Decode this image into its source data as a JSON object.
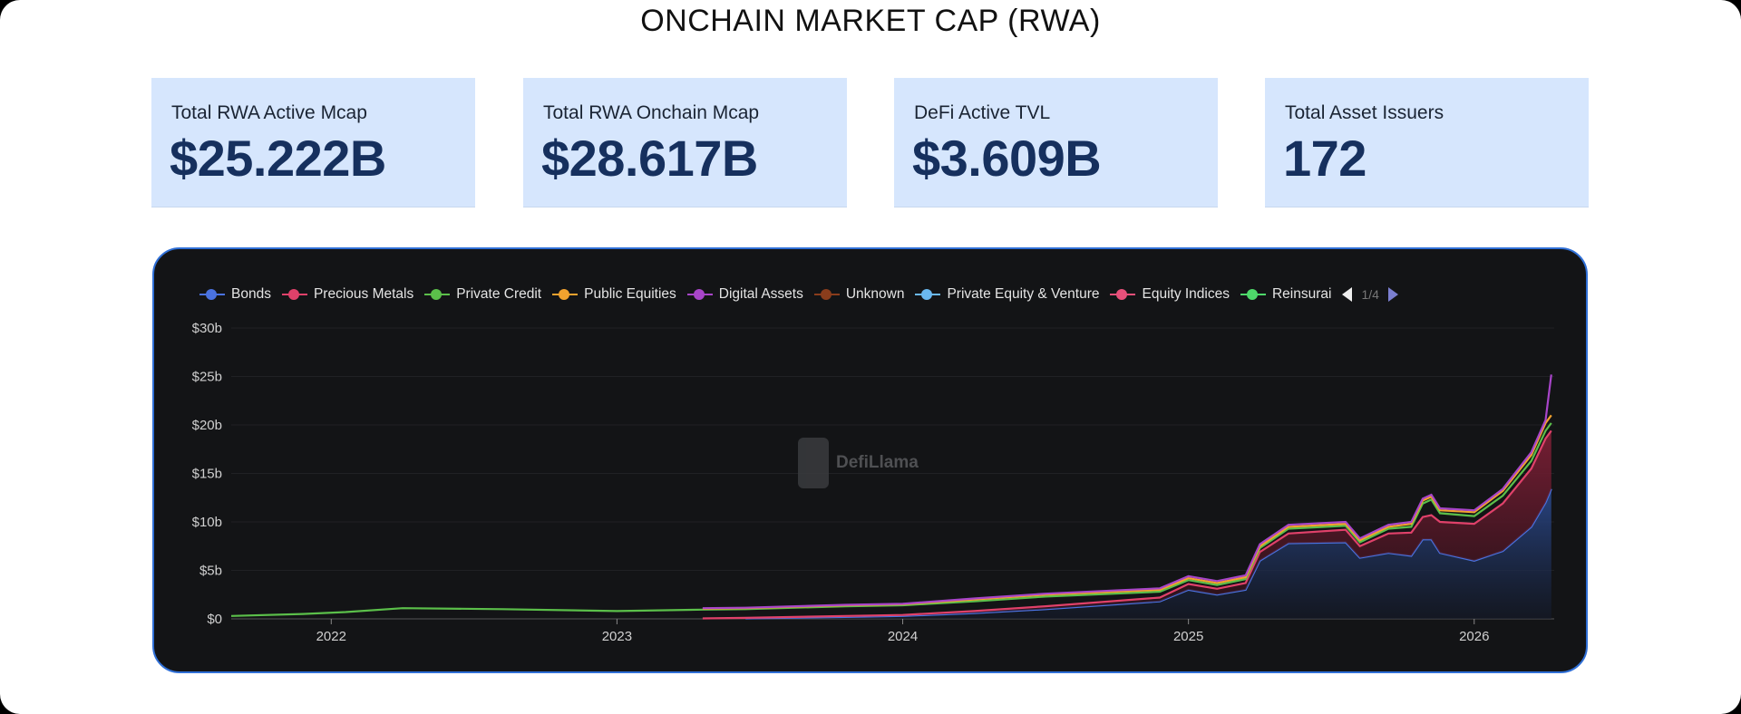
{
  "title": "ONCHAIN MARKET CAP (RWA)",
  "cards": [
    {
      "label": "Total RWA Active Mcap",
      "value": "$25.222B"
    },
    {
      "label": "Total RWA Onchain Mcap",
      "value": "$28.617B"
    },
    {
      "label": "DeFi Active TVL",
      "value": "$3.609B"
    },
    {
      "label": "Total Asset Issuers",
      "value": "172"
    }
  ],
  "legend": {
    "items": [
      {
        "label": "Bonds",
        "color": "#4a72e0"
      },
      {
        "label": "Precious Metals",
        "color": "#e0416a"
      },
      {
        "label": "Private Credit",
        "color": "#5bbf4a"
      },
      {
        "label": "Public Equities",
        "color": "#f2a22e"
      },
      {
        "label": "Digital Assets",
        "color": "#a845c9"
      },
      {
        "label": "Unknown",
        "color": "#8a3d1c"
      },
      {
        "label": "Private Equity & Venture",
        "color": "#6ab8f0"
      },
      {
        "label": "Equity Indices",
        "color": "#e8507a"
      },
      {
        "label": "Reinsurai",
        "color": "#4ed96a"
      }
    ],
    "page": "1/4"
  },
  "watermark": "DefiLlama",
  "chart_data": {
    "type": "area",
    "stacked": true,
    "title": "",
    "xlabel": "",
    "ylabel": "",
    "xlim": [
      2021.65,
      2026.28
    ],
    "ylim": [
      0,
      30
    ],
    "x_ticks": [
      "2022",
      "2023",
      "2024",
      "2025",
      "2026"
    ],
    "y_ticks": [
      "$0",
      "$5b",
      "$10b",
      "$15b",
      "$20b",
      "$25b",
      "$30b"
    ],
    "grid": true,
    "legend_position": "top",
    "x": [
      2021.65,
      2021.9,
      2022.05,
      2022.25,
      2022.6,
      2023.0,
      2023.3,
      2023.45,
      2023.8,
      2024.0,
      2024.25,
      2024.5,
      2024.9,
      2025.0,
      2025.1,
      2025.2,
      2025.25,
      2025.35,
      2025.55,
      2025.6,
      2025.7,
      2025.78,
      2025.82,
      2025.85,
      2025.88,
      2026.0,
      2026.1,
      2026.2,
      2026.25,
      2026.27
    ],
    "series": [
      {
        "name": "Bonds",
        "color": "#4a72e0",
        "values": [
          0,
          0,
          0,
          0,
          0,
          0,
          0,
          0.05,
          0.2,
          0.3,
          0.6,
          1.0,
          1.8,
          3.0,
          2.5,
          3.0,
          6.0,
          7.8,
          7.9,
          6.3,
          6.8,
          6.5,
          8.2,
          8.2,
          6.8,
          6.0,
          7.0,
          9.5,
          12.0,
          13.4
        ]
      },
      {
        "name": "Precious Metals",
        "color": "#e0416a",
        "values": [
          0,
          0,
          0,
          0,
          0,
          0,
          0.05,
          0.05,
          0.1,
          0.1,
          0.2,
          0.3,
          0.4,
          0.6,
          0.6,
          0.7,
          0.9,
          1.0,
          1.3,
          1.2,
          2.0,
          2.4,
          2.3,
          2.5,
          3.2,
          3.8,
          4.9,
          6.0,
          6.6,
          6.0
        ]
      },
      {
        "name": "Private Credit",
        "color": "#5bbf4a",
        "values": [
          0.3,
          0.5,
          0.7,
          1.1,
          1.0,
          0.8,
          0.9,
          0.9,
          1.0,
          1.0,
          1.0,
          1.0,
          0.6,
          0.4,
          0.4,
          0.4,
          0.4,
          0.5,
          0.4,
          0.4,
          0.5,
          0.6,
          1.4,
          1.6,
          0.9,
          0.8,
          0.8,
          0.8,
          0.8,
          0.8
        ]
      },
      {
        "name": "Public Equities",
        "color": "#f2a22e",
        "values": [
          0,
          0,
          0,
          0,
          0,
          0,
          0.1,
          0.1,
          0.1,
          0.1,
          0.2,
          0.2,
          0.2,
          0.2,
          0.2,
          0.2,
          0.2,
          0.2,
          0.2,
          0.2,
          0.2,
          0.3,
          0.3,
          0.3,
          0.3,
          0.4,
          0.5,
          0.6,
          0.8,
          0.8
        ]
      },
      {
        "name": "Digital Assets",
        "color": "#a845c9",
        "values": [
          0,
          0,
          0,
          0,
          0,
          0,
          0.05,
          0.05,
          0.05,
          0.05,
          0.1,
          0.1,
          0.15,
          0.2,
          0.2,
          0.2,
          0.2,
          0.2,
          0.2,
          0.2,
          0.2,
          0.2,
          0.2,
          0.2,
          0.2,
          0.2,
          0.2,
          0.3,
          0.3,
          4.2
        ]
      }
    ]
  }
}
